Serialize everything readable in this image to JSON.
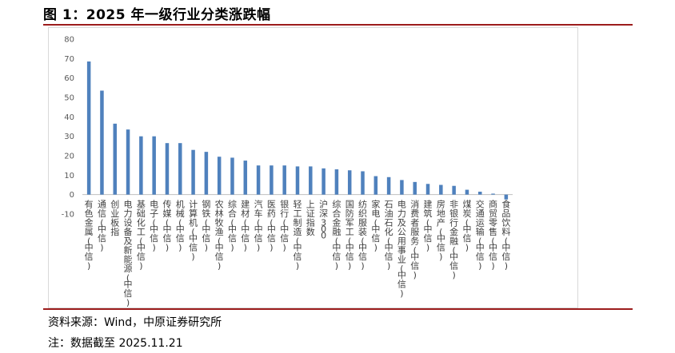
{
  "figure": {
    "title": "图 1：2025 年一级行业分类涨跌幅",
    "source": "资料来源：Wind，中原证券研究所",
    "note": "注：数据截至 2025.11.21"
  },
  "colors": {
    "bar": "#4f81bd",
    "accent_rule": "#9c1c1c",
    "axis": "#bfbfbf"
  },
  "chart_data": {
    "type": "bar",
    "title": "",
    "xlabel": "",
    "ylabel": "",
    "ylim": [
      -10,
      80
    ],
    "yticks": [
      -10,
      0,
      10,
      20,
      30,
      40,
      50,
      60,
      70,
      80
    ],
    "grid": false,
    "legend": "none",
    "categories": [
      "有色金属(中信)",
      "通信(中信)",
      "创业板指",
      "电力设备及新能源(中信)",
      "基础化工(中信)",
      "电子(中信)",
      "传媒(中信)",
      "机械(中信)",
      "计算机(中信)",
      "钢铁(中信)",
      "农林牧渔(中信)",
      "综合(中信)",
      "建材(中信)",
      "汽车(中信)",
      "医药(中信)",
      "银行(中信)",
      "轻工制造(中信)",
      "上证指数",
      "沪深300",
      "综合金融(中信)",
      "国防军工(中信)",
      "纺织服装(中信)",
      "家电(中信)",
      "石油石化(中信)",
      "电力及公用事业(中信)",
      "消费者服务(中信)",
      "建筑(中信)",
      "房地产(中信)",
      "非银行金融(中信)",
      "煤炭(中信)",
      "交通运输(中信)",
      "商贸零售(中信)",
      "食品饮料(中信)"
    ],
    "values": [
      68.5,
      53.5,
      36.5,
      33.5,
      30.0,
      30.0,
      26.5,
      26.5,
      23.0,
      22.0,
      19.5,
      19.0,
      17.5,
      15.0,
      15.0,
      15.0,
      14.5,
      14.5,
      13.5,
      13.0,
      12.5,
      12.0,
      9.5,
      9.0,
      7.5,
      6.5,
      5.5,
      5.0,
      4.5,
      2.5,
      1.5,
      0.5,
      -2.5
    ]
  }
}
